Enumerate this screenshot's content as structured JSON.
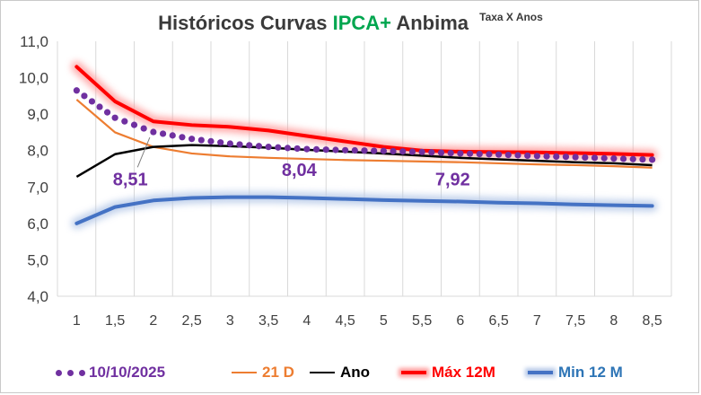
{
  "title": {
    "part1": "Históricos Curvas",
    "highlight": "IPCA+",
    "part2": "Anbima",
    "superscript": "Taxa X Anos"
  },
  "chart_data": {
    "type": "line",
    "title": "Históricos Curvas IPCA+ Anbima Taxa X Anos",
    "xlabel": "",
    "ylabel": "",
    "x": [
      1,
      1.5,
      2,
      2.5,
      3,
      3.5,
      4,
      4.5,
      5,
      5.5,
      6,
      6.5,
      7,
      7.5,
      8,
      8.5
    ],
    "x_tick_labels": [
      "1",
      "1,5",
      "2",
      "2,5",
      "3",
      "3,5",
      "4",
      "4,5",
      "5",
      "5,5",
      "6",
      "6,5",
      "7",
      "7,5",
      "8",
      "8,5"
    ],
    "y_tick_labels": [
      "4,0",
      "5,0",
      "6,0",
      "7,0",
      "8,0",
      "9,0",
      "10,0",
      "11,0"
    ],
    "ylim": [
      4.0,
      11.0
    ],
    "grid": "vertical",
    "legend_position": "bottom",
    "series": [
      {
        "name": "10/10/2025",
        "color": "#7030a0",
        "style": "dotted",
        "values": [
          9.65,
          8.9,
          8.51,
          8.32,
          8.19,
          8.1,
          8.04,
          8.01,
          7.99,
          7.96,
          7.92,
          7.89,
          7.85,
          7.82,
          7.78,
          7.75
        ]
      },
      {
        "name": "21 D",
        "color": "#ed7d31",
        "style": "solid",
        "values": [
          9.4,
          8.5,
          8.1,
          7.92,
          7.84,
          7.8,
          7.77,
          7.74,
          7.72,
          7.7,
          7.68,
          7.65,
          7.62,
          7.6,
          7.57,
          7.53
        ]
      },
      {
        "name": "Ano",
        "color": "#000000",
        "style": "solid",
        "values": [
          7.28,
          7.9,
          8.1,
          8.15,
          8.12,
          8.08,
          8.02,
          7.97,
          7.92,
          7.86,
          7.8,
          7.76,
          7.72,
          7.68,
          7.65,
          7.6
        ]
      },
      {
        "name": "Máx 12M",
        "color": "#ff0000",
        "style": "glow",
        "values": [
          10.3,
          9.35,
          8.8,
          8.7,
          8.65,
          8.55,
          8.4,
          8.25,
          8.1,
          8.0,
          7.97,
          7.96,
          7.95,
          7.93,
          7.91,
          7.88
        ]
      },
      {
        "name": "Min 12 M",
        "color": "#4472c4",
        "style": "glow",
        "values": [
          6.0,
          6.45,
          6.63,
          6.7,
          6.72,
          6.72,
          6.7,
          6.67,
          6.64,
          6.62,
          6.6,
          6.57,
          6.55,
          6.52,
          6.5,
          6.48
        ]
      }
    ],
    "annotations": [
      {
        "text": "8,51",
        "x": 1.7,
        "y": 7.05
      },
      {
        "text": "8,04",
        "x": 3.9,
        "y": 7.3
      },
      {
        "text": "7,92",
        "x": 5.9,
        "y": 7.05
      }
    ]
  },
  "legend": [
    {
      "label": "10/10/2025",
      "color": "#7030a0",
      "text_color": "#7030a0",
      "symbol": "dots"
    },
    {
      "label": "21 D",
      "color": "#ed7d31",
      "text_color": "#ed7d31",
      "symbol": "line"
    },
    {
      "label": "Ano",
      "color": "#000000",
      "text_color": "#000000",
      "symbol": "line"
    },
    {
      "label": "Máx 12M",
      "color": "#ff0000",
      "text_color": "#ff0000",
      "symbol": "glow"
    },
    {
      "label": "Min 12 M",
      "color": "#4472c4",
      "text_color": "#2e75b6",
      "symbol": "glow"
    }
  ]
}
